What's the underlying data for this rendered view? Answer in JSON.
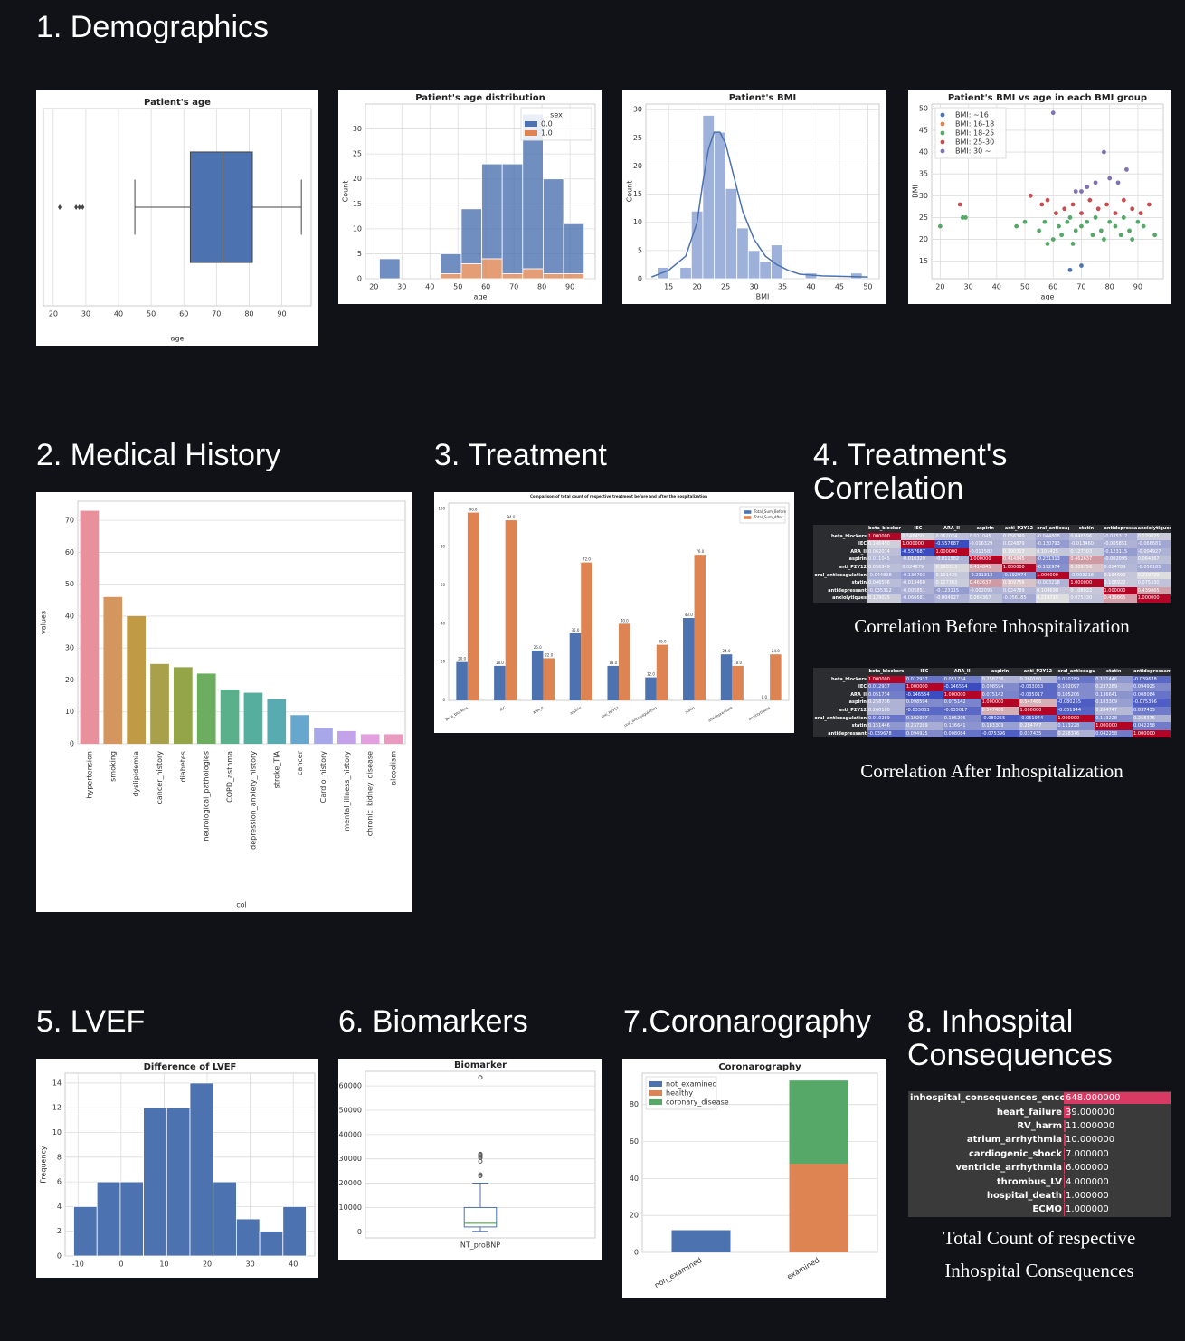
{
  "sections": [
    "1. Demographics",
    "2. Medical History",
    "3. Treatment",
    "4. Treatment's Correlation",
    "5. LVEF",
    "6. Biomarkers",
    "7.Coronarography",
    "8. Inhospital Consequences"
  ],
  "chart_data": [
    {
      "type": "box",
      "title": "Patient's age",
      "orientation": "horizontal",
      "xlabel": "age",
      "whisker_low": 45,
      "q1": 62,
      "median": 72,
      "q3": 81,
      "whisker_high": 96,
      "outliers": [
        22,
        27,
        28,
        29
      ],
      "color": "#4c72b0",
      "xlim": [
        17,
        99
      ],
      "xticks": [
        20,
        30,
        40,
        50,
        60,
        70,
        80,
        90
      ],
      "grid": true
    },
    {
      "type": "histogram",
      "title": "Patient's age distribution",
      "xlabel": "age",
      "ylabel": "Count",
      "bins": [
        22,
        29.3,
        36.6,
        43.9,
        51.2,
        58.5,
        65.8,
        73.1,
        80.4,
        87.7,
        95
      ],
      "stacked": true,
      "series": [
        {
          "name": "0.0",
          "color": "#4c72b0",
          "values": [
            4,
            0,
            0,
            4,
            11,
            19,
            22,
            31,
            19,
            10
          ]
        },
        {
          "name": "1.0",
          "color": "#dd8452",
          "values": [
            0,
            0,
            0,
            1,
            3,
            4,
            1,
            2,
            1,
            1
          ]
        }
      ],
      "legend_title": "sex",
      "legend": "upper right",
      "xlim": [
        17,
        99
      ],
      "xticks": [
        20,
        30,
        40,
        50,
        60,
        70,
        80,
        90
      ],
      "ylim": [
        0,
        35
      ],
      "yticks": [
        0,
        5,
        10,
        15,
        20,
        25,
        30
      ],
      "grid": true
    },
    {
      "type": "histogram",
      "title": "Patient's BMI",
      "xlabel": "BMI",
      "ylabel": "Count",
      "bins": [
        13,
        15,
        17,
        19,
        21,
        23,
        25,
        27,
        29,
        31,
        33,
        35,
        37,
        39,
        41,
        43,
        45,
        47,
        49,
        51
      ],
      "values": [
        2,
        0,
        2,
        12,
        29,
        26,
        16,
        9,
        5,
        3,
        6,
        0,
        0,
        1,
        0,
        0,
        0,
        1,
        0
      ],
      "color": "#9db1db",
      "line": {
        "x": [
          12,
          15,
          18,
          20,
          21,
          22,
          23,
          24,
          25,
          26,
          27,
          28,
          30,
          32,
          34,
          36,
          38,
          42,
          46,
          50
        ],
        "values": [
          0.3,
          1.5,
          4,
          10,
          17,
          23,
          26,
          26,
          24,
          20,
          16,
          12,
          7,
          4,
          2.5,
          1.5,
          0.8,
          0.5,
          0.4,
          0.3
        ],
        "color": "#4c72b0"
      },
      "xlim": [
        11,
        52
      ],
      "xticks": [
        15,
        20,
        25,
        30,
        35,
        40,
        45,
        50
      ],
      "ylim": [
        0,
        31
      ],
      "yticks": [
        0,
        5,
        10,
        15,
        20,
        25,
        30
      ],
      "grid": true
    },
    {
      "type": "scatter",
      "title": "Patient's BMI vs age in each BMI group",
      "xlabel": "age",
      "ylabel": "BMI",
      "legend": "upper left",
      "series": [
        {
          "name": "BMI: ~16",
          "color": "#4c72b0",
          "x": [
            66,
            70
          ],
          "values": [
            13,
            14
          ]
        },
        {
          "name": "BMI: 16-18",
          "color": "#dd8452",
          "x": [],
          "values": []
        },
        {
          "name": "BMI: 18-25",
          "color": "#55a868",
          "x": [
            20,
            28,
            29,
            47,
            50,
            55,
            57,
            60,
            62,
            63,
            65,
            67,
            68,
            70,
            72,
            74,
            75,
            77,
            78,
            80,
            82,
            84,
            85,
            87,
            88,
            90,
            92,
            96,
            58,
            66
          ],
          "values": [
            23,
            25,
            25,
            23,
            24,
            22,
            24,
            20,
            23,
            21,
            24,
            19,
            22,
            23,
            24,
            21,
            25,
            22,
            20,
            24,
            23,
            21,
            25,
            22,
            20,
            24,
            23,
            21,
            19,
            25
          ]
        },
        {
          "name": "BMI: 25-30",
          "color": "#c44e52",
          "x": [
            27,
            52,
            56,
            58,
            61,
            64,
            67,
            70,
            73,
            76,
            79,
            82,
            85,
            88,
            91,
            94
          ],
          "values": [
            28,
            30,
            28,
            29,
            26,
            27,
            28,
            26,
            29,
            27,
            28,
            26,
            29,
            27,
            26,
            28
          ]
        },
        {
          "name": "BMI: 30 ~",
          "color": "#8172b3",
          "x": [
            60,
            78,
            72,
            75,
            80,
            83,
            86,
            68,
            70
          ],
          "values": [
            49,
            40,
            32,
            33,
            34,
            33,
            36,
            31,
            31
          ]
        }
      ],
      "xlim": [
        17,
        99
      ],
      "xticks": [
        20,
        30,
        40,
        50,
        60,
        70,
        80,
        90
      ],
      "ylim": [
        11,
        51
      ],
      "yticks": [
        15,
        20,
        25,
        30,
        35,
        40,
        45,
        50
      ],
      "grid": true
    },
    {
      "type": "bar",
      "xlabel": "col",
      "ylabel": "values",
      "categories": [
        "hypertension",
        "smoking",
        "dyslipidemia",
        "cancer_history",
        "diabetes",
        "neurological_pathologies",
        "COPD_asthma",
        "depression_anxiety_history",
        "stroke_TIA",
        "cancer",
        "Cardio_history",
        "mental_illness_history",
        "chronic_kidney_disease",
        "alcoolism"
      ],
      "values": [
        73,
        46,
        40,
        25,
        24,
        22,
        17,
        16,
        14,
        9,
        5,
        4,
        3,
        3
      ],
      "colors": [
        "#e8909c",
        "#d4955e",
        "#c09a45",
        "#a8a04a",
        "#94a548",
        "#6cad5f",
        "#59b08b",
        "#56ae9e",
        "#58abb0",
        "#68a7cd",
        "#a8a7ea",
        "#c4a2ea",
        "#e39ee0",
        "#eb9abf"
      ],
      "label_rotation": 90,
      "ylim": [
        0,
        76
      ],
      "yticks": [
        0,
        10,
        20,
        30,
        40,
        50,
        60,
        70
      ],
      "grid": true
    },
    {
      "type": "bar",
      "title": "Comparison of total count of respective treatment before and after the hospitalization",
      "categories": [
        "beta_blockers",
        "IEC",
        "ARA_II",
        "aspirin",
        "anti_P2Y12",
        "oral_anticoagulation",
        "statin",
        "antidepressant",
        "anxiolytiques"
      ],
      "series": [
        {
          "name": "Total_Sum_Before",
          "color": "#4c72b0",
          "values": [
            20,
            18,
            26,
            35,
            18,
            12,
            43,
            24,
            0
          ],
          "value_labels": [
            "20.0",
            "18.0",
            "26.0",
            "35.0",
            "18.0",
            "12.0",
            "43.0",
            "24.0",
            "0.0"
          ]
        },
        {
          "name": "Total_Sum_After",
          "color": "#dd8452",
          "values": [
            98,
            94,
            22,
            72,
            40,
            29,
            76,
            18,
            24
          ],
          "value_labels": [
            "98.0",
            "94.0",
            "22.0",
            "72.0",
            "40.0",
            "29.0",
            "76.0",
            "18.0",
            "24.0"
          ]
        }
      ],
      "legend": "upper right",
      "label_rotation": 30,
      "ylim": [
        0,
        103
      ],
      "yticks": [
        0,
        20,
        40,
        60,
        80,
        100
      ],
      "grid": false
    },
    {
      "type": "histogram",
      "title": "Difference of LVEF",
      "ylabel": "Frequency",
      "bins": [
        -11,
        -5.6,
        -0.2,
        5.2,
        10.6,
        16,
        21.4,
        26.8,
        32.2,
        37.6,
        43
      ],
      "values": [
        4,
        6,
        6,
        12,
        12,
        14,
        6,
        3,
        2,
        4
      ],
      "color": "#4c72b0",
      "xlim": [
        -13,
        45
      ],
      "xticks": [
        -10,
        0,
        10,
        20,
        30,
        40
      ],
      "ylim": [
        0,
        14.8
      ],
      "yticks": [
        0,
        2,
        4,
        6,
        8,
        10,
        12,
        14
      ],
      "grid": true
    },
    {
      "type": "box",
      "title": "Biomarker",
      "orientation": "vertical",
      "categories": [
        "NT_proBNP"
      ],
      "whisker_low": 200,
      "q1": 2000,
      "median": 3500,
      "q3": 10000,
      "whisker_high": 20000,
      "outliers": [
        23000,
        23500,
        29000,
        30500,
        31000,
        31500,
        32000,
        63500
      ],
      "color": "#4c72b0",
      "ylim": [
        -2500,
        66000
      ],
      "yticks": [
        0,
        10000,
        20000,
        30000,
        40000,
        50000,
        60000
      ],
      "grid": true
    },
    {
      "type": "bar",
      "title": "Coronarography",
      "stacked": true,
      "categories": [
        "non_examined",
        "examined"
      ],
      "series": [
        {
          "name": "not_examined",
          "color": "#4c72b0",
          "values": [
            12,
            0
          ]
        },
        {
          "name": "healthy",
          "color": "#dd8452",
          "values": [
            0,
            48
          ]
        },
        {
          "name": "coronary_disease",
          "color": "#55a868",
          "values": [
            0,
            45
          ]
        }
      ],
      "legend": "upper left",
      "label_rotation": 30,
      "ylim": [
        0,
        97
      ],
      "yticks": [
        0,
        20,
        40,
        60,
        80
      ],
      "grid": true
    }
  ],
  "tables": [
    {
      "caption": "Correlation Before Inhospitalization",
      "columns": [
        "beta_blockers",
        "IEC",
        "ARA_II",
        "aspirin",
        "anti_P2Y12",
        "oral_anticoagulation",
        "statin",
        "antidepressant",
        "anxiolytiques"
      ],
      "rows": [
        {
          "label": "beta_blockers",
          "cells": [
            "1.000000",
            "0.146450",
            "0.062074",
            "0.011045",
            "0.056349",
            "-0.044808",
            "0.046596",
            "-0.035312",
            "0.129025"
          ]
        },
        {
          "label": "IEC",
          "cells": [
            "0.146450",
            "1.000000",
            "-0.557687",
            "-0.016329",
            "0.024879",
            "-0.130793",
            "-0.013460",
            "-0.005851",
            "-0.066681"
          ]
        },
        {
          "label": "ARA_II",
          "cells": [
            "0.062074",
            "-0.557687",
            "1.000000",
            "-0.011582",
            "0.190313",
            "0.101425",
            "0.127303",
            "-0.123115",
            "-0.004927"
          ]
        },
        {
          "label": "aspirin",
          "cells": [
            "0.011045",
            "-0.016329",
            "-0.011582",
            "1.000000",
            "0.414845",
            "-0.231313",
            "0.462637",
            "-0.002095",
            "0.064367"
          ]
        },
        {
          "label": "anti_P2Y12",
          "cells": [
            "0.056349",
            "0.024879",
            "0.190313",
            "0.414845",
            "1.000000",
            "-0.192974",
            "0.309756",
            "0.024789",
            "-0.056185"
          ]
        },
        {
          "label": "oral_anticoagulation",
          "cells": [
            "-0.044808",
            "-0.130793",
            "0.101425",
            "-0.231313",
            "-0.192974",
            "1.000000",
            "-0.003218",
            "0.104690",
            "0.219729"
          ]
        },
        {
          "label": "statin",
          "cells": [
            "0.046596",
            "-0.013460",
            "0.127303",
            "0.462637",
            "0.309756",
            "-0.003218",
            "1.000000",
            "0.108922",
            "0.075330"
          ]
        },
        {
          "label": "antidepressant",
          "cells": [
            "-0.035312",
            "-0.005851",
            "-0.123115",
            "-0.002095",
            "0.024789",
            "0.104690",
            "0.108922",
            "1.000000",
            "0.439865"
          ]
        },
        {
          "label": "anxiolytiques",
          "cells": [
            "0.129025",
            "-0.066681",
            "-0.004927",
            "0.064367",
            "-0.056185",
            "0.219729",
            "0.075330",
            "0.439865",
            "1.000000"
          ]
        }
      ]
    },
    {
      "caption": "Correlation After Inhospitalization",
      "columns": [
        "beta_blockers",
        "IEC",
        "ARA_II",
        "aspirin",
        "anti_P2Y12",
        "oral_anticoagulation",
        "statin",
        "antidepressant"
      ],
      "rows": [
        {
          "label": "beta_blockers",
          "cells": [
            "1.000000",
            "0.012937",
            "0.051734",
            "0.258736",
            "0.260180",
            "0.010289",
            "0.151446",
            "-0.039678"
          ]
        },
        {
          "label": "IEC",
          "cells": [
            "0.012937",
            "1.000000",
            "-0.146554",
            "0.098594",
            "-0.033033",
            "0.102097",
            "0.237289",
            "0.094925"
          ]
        },
        {
          "label": "ARA_II",
          "cells": [
            "0.051734",
            "-0.146554",
            "1.000000",
            "0.075142",
            "-0.035017",
            "0.105206",
            "0.136641",
            "0.008084"
          ]
        },
        {
          "label": "aspirin",
          "cells": [
            "0.258736",
            "0.098594",
            "0.075142",
            "1.000000",
            "0.547486",
            "-0.080255",
            "0.183309",
            "-0.075396"
          ]
        },
        {
          "label": "anti_P2Y12",
          "cells": [
            "0.260180",
            "-0.033033",
            "-0.035017",
            "0.547486",
            "1.000000",
            "-0.051944",
            "0.284747",
            "0.037435"
          ]
        },
        {
          "label": "oral_anticoagulation",
          "cells": [
            "0.010289",
            "0.102097",
            "0.105206",
            "-0.080255",
            "-0.051944",
            "1.000000",
            "0.113228",
            "0.258376"
          ]
        },
        {
          "label": "statin",
          "cells": [
            "0.151446",
            "0.237289",
            "0.136641",
            "0.183309",
            "0.284747",
            "0.113228",
            "1.000000",
            "0.042258"
          ]
        },
        {
          "label": "antidepressant",
          "cells": [
            "-0.039678",
            "0.094925",
            "0.008084",
            "-0.075396",
            "0.037435",
            "0.258376",
            "0.042258",
            "1.000000"
          ]
        }
      ]
    },
    {
      "caption": "Total Count of respective Inhospital Consequences",
      "rows": [
        {
          "label": "inhospital_consequences_encoded",
          "value": "648.000000"
        },
        {
          "label": "heart_failure",
          "value": "39.000000"
        },
        {
          "label": "RV_harm",
          "value": "11.000000"
        },
        {
          "label": "atrium_arrhythmia",
          "value": "10.000000"
        },
        {
          "label": "cardiogenic_shock",
          "value": "7.000000"
        },
        {
          "label": "ventricle_arrhythmia",
          "value": "6.000000"
        },
        {
          "label": "thrombus_LV",
          "value": "4.000000"
        },
        {
          "label": "hospital_death",
          "value": "1.000000"
        },
        {
          "label": "ECMO",
          "value": "1.000000"
        }
      ]
    }
  ]
}
